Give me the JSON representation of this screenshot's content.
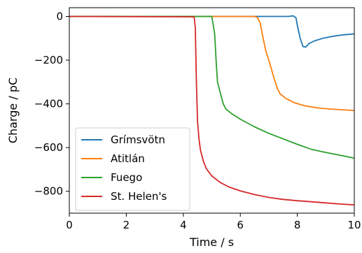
{
  "chart_data": {
    "type": "line",
    "xlabel": "Time / s",
    "ylabel": "Charge / pC",
    "xlim": [
      0,
      10
    ],
    "ylim": [
      -900,
      40
    ],
    "xticks": [
      0,
      2,
      4,
      6,
      8,
      10
    ],
    "xtick_labels": [
      "0",
      "2",
      "4",
      "6",
      "8",
      "10"
    ],
    "yticks": [
      0,
      -200,
      -400,
      -600,
      -800
    ],
    "ytick_labels": [
      "0",
      "−200",
      "−400",
      "−600",
      "−800"
    ],
    "grid": false,
    "legend_position": "lower-left",
    "series": [
      {
        "name": "Grímsvötn",
        "color": "#1f77b4",
        "x": [
          0,
          4.0,
          7.7,
          7.85,
          7.95,
          8.0,
          8.1,
          8.2,
          8.3,
          8.4,
          8.6,
          8.9,
          9.2,
          9.5,
          9.8,
          10.0
        ],
        "y": [
          0,
          0,
          0,
          3,
          -5,
          -40,
          -100,
          -138,
          -140,
          -125,
          -112,
          -100,
          -92,
          -86,
          -82,
          -80
        ]
      },
      {
        "name": "Atitlán",
        "color": "#ff7f0e",
        "x": [
          0,
          4.0,
          6.5,
          6.6,
          6.7,
          6.8,
          6.9,
          7.0,
          7.1,
          7.2,
          7.3,
          7.4,
          7.6,
          7.9,
          8.3,
          8.8,
          9.3,
          9.7,
          10.0
        ],
        "y": [
          0,
          0,
          0,
          -5,
          -30,
          -100,
          -160,
          -200,
          -245,
          -290,
          -330,
          -355,
          -375,
          -395,
          -410,
          -420,
          -425,
          -428,
          -430
        ]
      },
      {
        "name": "Fuego",
        "color": "#2ca02c",
        "x": [
          0,
          4.0,
          5.0,
          5.1,
          5.15,
          5.2,
          5.3,
          5.4,
          5.5,
          5.7,
          6.0,
          6.5,
          7.0,
          7.5,
          8.0,
          8.5,
          9.0,
          9.5,
          10.0
        ],
        "y": [
          0,
          0,
          0,
          -80,
          -200,
          -300,
          -350,
          -400,
          -425,
          -445,
          -470,
          -505,
          -535,
          -560,
          -585,
          -608,
          -622,
          -635,
          -648
        ]
      },
      {
        "name": "St. Helen's",
        "color": "#d62728",
        "x": [
          0,
          4.3,
          4.38,
          4.42,
          4.46,
          4.5,
          4.55,
          4.6,
          4.7,
          4.8,
          5.0,
          5.3,
          5.6,
          6.0,
          6.5,
          7.0,
          7.5,
          8.0,
          8.5,
          9.0,
          9.5,
          10.0
        ],
        "y": [
          0,
          -2,
          -3,
          -50,
          -300,
          -480,
          -560,
          -610,
          -660,
          -695,
          -730,
          -760,
          -780,
          -798,
          -815,
          -828,
          -837,
          -843,
          -848,
          -853,
          -858,
          -862
        ]
      }
    ]
  }
}
